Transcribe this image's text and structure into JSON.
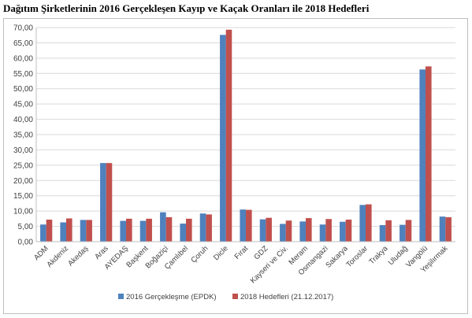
{
  "chart_data": {
    "type": "bar",
    "title": "Dağıtım Şirketlerinin 2016 Gerçekleşen Kayıp ve Kaçak Oranları ile 2018 Hedefleri",
    "categories": [
      "ADM",
      "Akdeniz",
      "Akedaş",
      "Aras",
      "AYEDAŞ",
      "Başkent",
      "Boğaziçi",
      "Çamlıbel",
      "Çoruh",
      "Dicle",
      "Fırat",
      "GDZ",
      "Kayseri ve Civ.",
      "Meram",
      "Osmangazi",
      "Sakarya",
      "Toroslar",
      "Trakya",
      "Uludağ",
      "Vangölü",
      "Yeşilırmak"
    ],
    "series": [
      {
        "name": "2016 Gerçekleşme (EPDK)",
        "color": "#4f81bd",
        "values": [
          5.6,
          6.3,
          7.1,
          25.7,
          6.8,
          6.8,
          9.6,
          5.9,
          9.2,
          67.6,
          10.5,
          7.3,
          5.8,
          6.6,
          5.6,
          6.5,
          12.0,
          5.4,
          5.5,
          56.3,
          8.2
        ]
      },
      {
        "name": "2018 Hedefleri (21.12.2017)",
        "color": "#c0504d",
        "values": [
          7.2,
          7.6,
          7.1,
          25.7,
          7.5,
          7.5,
          8.0,
          7.5,
          8.9,
          69.3,
          10.4,
          7.8,
          6.9,
          7.7,
          7.4,
          7.2,
          12.2,
          7.0,
          7.1,
          57.3,
          8.0
        ]
      }
    ],
    "yticks": [
      "0,00",
      "5,00",
      "10,00",
      "15,00",
      "20,00",
      "25,00",
      "30,00",
      "35,00",
      "40,00",
      "45,00",
      "50,00",
      "55,00",
      "60,00",
      "65,00",
      "70,00"
    ],
    "ylim": [
      0,
      70
    ],
    "ystep": 5,
    "grid": true,
    "legend_position": "bottom"
  }
}
